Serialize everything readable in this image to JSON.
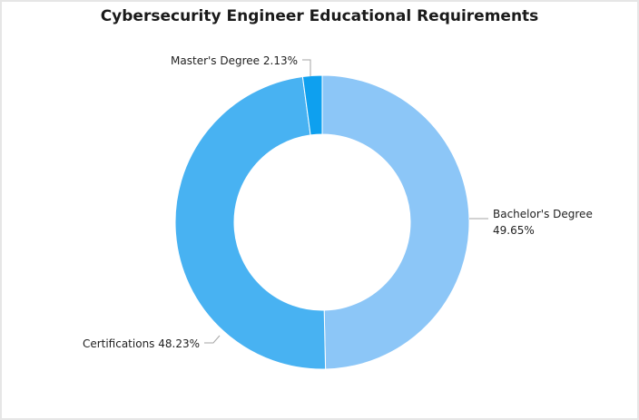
{
  "chart_data": {
    "type": "pie",
    "variant": "donut",
    "title": "Cybersecurity Engineer Educational Requirements",
    "slices": [
      {
        "label": "Bachelor's Degree",
        "value": 49.65,
        "value_text": "49.65%",
        "color": "#8cc6f7"
      },
      {
        "label": "Certifications",
        "value": 48.23,
        "value_text": "48.23%",
        "color": "#48b2f2"
      },
      {
        "label": "Master's Degree",
        "value": 2.13,
        "value_text": "2.13%",
        "color": "#0ea0ef"
      }
    ],
    "data_labels": [
      {
        "lines": [
          "Bachelor's Degree",
          "49.65%"
        ]
      },
      {
        "lines": [
          "Certifications 48.23%"
        ]
      },
      {
        "lines": [
          "Master's Degree 2.13%"
        ]
      }
    ],
    "legend": "none"
  }
}
